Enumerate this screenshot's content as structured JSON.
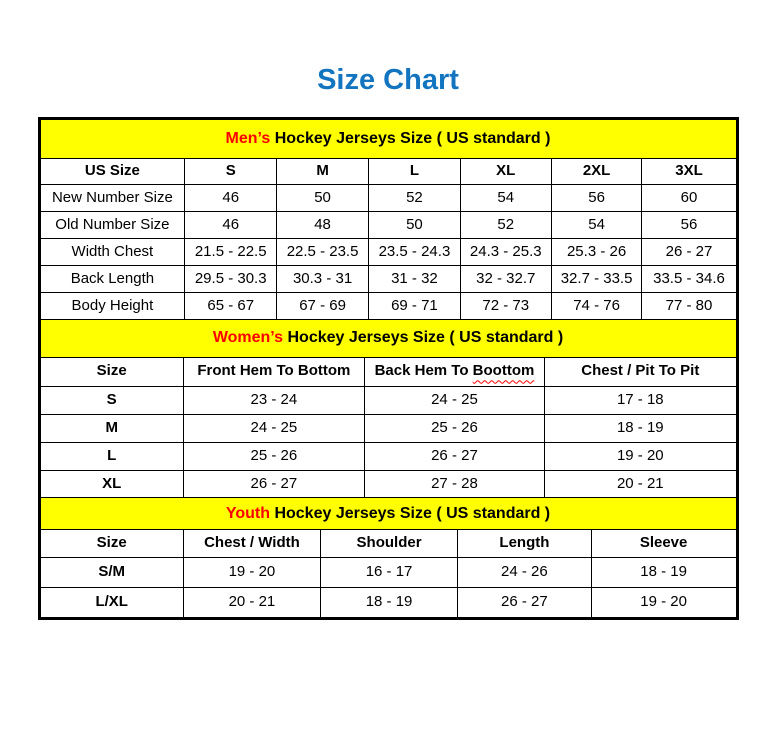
{
  "page": {
    "title": "Size Chart"
  },
  "colors": {
    "title_color": "#1375c0",
    "band_bg": "#ffff00",
    "accent_red": "#ff0000",
    "border_color": "#000000",
    "text_color": "#000000",
    "page_bg": "#ffffff"
  },
  "chart_data": [
    {
      "type": "table",
      "id": "mens",
      "band_accent": "Men’s",
      "band_rest": "Hockey Jerseys Size ( US standard )",
      "columns": [
        "US Size",
        "S",
        "M",
        "L",
        "XL",
        "2XL",
        "3XL"
      ],
      "rows": [
        {
          "label": "New Number Size",
          "values": [
            "46",
            "50",
            "52",
            "54",
            "56",
            "60"
          ]
        },
        {
          "label": "Old Number Size",
          "values": [
            "46",
            "48",
            "50",
            "52",
            "54",
            "56"
          ]
        },
        {
          "label": "Width Chest",
          "values": [
            "21.5 - 22.5",
            "22.5 - 23.5",
            "23.5 - 24.3",
            "24.3 - 25.3",
            "25.3 - 26",
            "26 - 27"
          ]
        },
        {
          "label": "Back Length",
          "values": [
            "29.5 - 30.3",
            "30.3 - 31",
            "31 - 32",
            "32 - 32.7",
            "32.7 - 33.5",
            "33.5 - 34.6"
          ]
        },
        {
          "label": "Body Height",
          "values": [
            "65 - 67",
            "67 - 69",
            "69 - 71",
            "72 - 73",
            "74 - 76",
            "77 - 80"
          ]
        }
      ]
    },
    {
      "type": "table",
      "id": "womens",
      "band_accent": "Women’s",
      "band_rest": "Hockey Jerseys Size ( US standard )",
      "columns": [
        "Size",
        "Front Hem To Bottom",
        "Back Hem To Boottom",
        "Chest / Pit To Pit"
      ],
      "squiggle": {
        "column": 2,
        "word": "Boottom"
      },
      "rows": [
        {
          "label": "S",
          "values": [
            "23 - 24",
            "24 - 25",
            "17 - 18"
          ]
        },
        {
          "label": "M",
          "values": [
            "24 - 25",
            "25 - 26",
            "18 - 19"
          ]
        },
        {
          "label": "L",
          "values": [
            "25 - 26",
            "26 - 27",
            "19 - 20"
          ]
        },
        {
          "label": "XL",
          "values": [
            "26 - 27",
            "27 - 28",
            "20 - 21"
          ]
        }
      ]
    },
    {
      "type": "table",
      "id": "youth",
      "band_accent": "Youth",
      "band_rest": "Hockey Jerseys Size ( US standard )",
      "columns": [
        "Size",
        "Chest / Width",
        "Shoulder",
        "Length",
        "Sleeve"
      ],
      "rows": [
        {
          "label": "S/M",
          "values": [
            "19 - 20",
            "16 - 17",
            "24 - 26",
            "18 - 19"
          ]
        },
        {
          "label": "L/XL",
          "values": [
            "20 - 21",
            "18 - 19",
            "26 - 27",
            "19 - 20"
          ]
        }
      ]
    }
  ]
}
